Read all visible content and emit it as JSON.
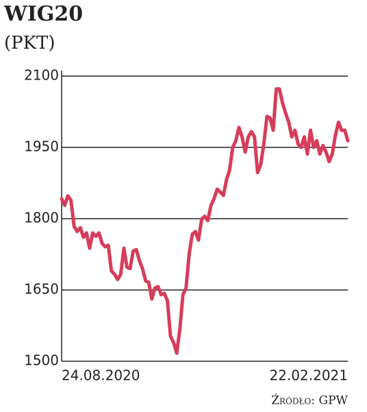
{
  "chart_data": {
    "type": "line",
    "title": "WIG20",
    "subtitle": "(PKT)",
    "source": "Źródło: GPW",
    "categories": [
      "24.08.2020",
      null,
      null,
      null,
      null,
      null,
      null,
      null,
      null,
      null,
      null,
      null,
      null,
      null,
      null,
      null,
      null,
      null,
      null,
      null,
      null,
      null,
      null,
      null,
      null,
      null,
      null,
      null,
      null,
      null,
      null,
      null,
      null,
      null,
      null,
      null,
      null,
      null,
      null,
      null,
      null,
      null,
      null,
      null,
      null,
      null,
      null,
      null,
      null,
      null,
      null,
      null,
      null,
      null,
      null,
      null,
      null,
      null,
      null,
      null,
      null,
      null,
      null,
      null,
      null,
      null,
      null,
      null,
      null,
      null,
      null,
      null,
      null,
      null,
      null,
      null,
      null,
      null,
      null,
      null,
      null,
      null,
      null,
      null,
      null,
      null,
      null,
      null,
      null,
      null,
      null,
      null,
      "22.02.2021"
    ],
    "values": [
      1842,
      1828,
      1848,
      1839,
      1784,
      1773,
      1781,
      1761,
      1770,
      1738,
      1770,
      1763,
      1770,
      1748,
      1741,
      1744,
      1690,
      1683,
      1672,
      1683,
      1738,
      1698,
      1695,
      1732,
      1735,
      1712,
      1695,
      1669,
      1666,
      1631,
      1654,
      1657,
      1640,
      1643,
      1628,
      1553,
      1539,
      1517,
      1568,
      1640,
      1654,
      1726,
      1767,
      1773,
      1755,
      1799,
      1805,
      1796,
      1828,
      1842,
      1862,
      1856,
      1849,
      1882,
      1902,
      1950,
      1964,
      1992,
      1972,
      1940,
      1972,
      1983,
      1972,
      1897,
      1914,
      1957,
      2015,
      2012,
      1986,
      2073,
      2073,
      2044,
      2022,
      2003,
      1972,
      1986,
      1957,
      1950,
      1972,
      1936,
      1986,
      1950,
      1964,
      1936,
      1954,
      1940,
      1920,
      1936,
      1975,
      2003,
      1986,
      1986,
      1964
    ],
    "color": "#d63d5a",
    "ylim": [
      1500,
      2100
    ],
    "yticks": [
      1500,
      1650,
      1800,
      1950,
      2100
    ],
    "grid": true
  }
}
